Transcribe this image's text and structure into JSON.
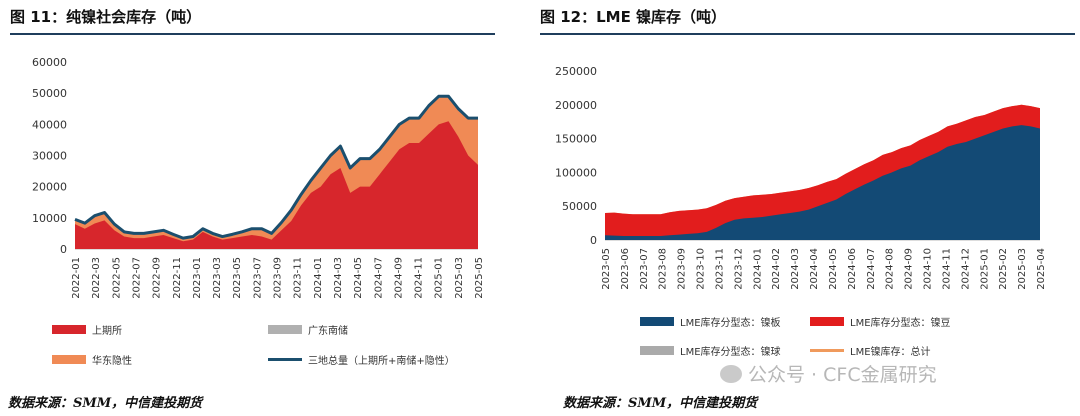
{
  "left": {
    "title": "图 11：纯镍社会库存（吨）",
    "source": "数据来源：SMM，中信建投期货",
    "chart_data": {
      "type": "area",
      "yticks": [
        0,
        10000,
        20000,
        30000,
        40000,
        50000,
        60000
      ],
      "ylim": [
        0,
        60000
      ],
      "xlabels": [
        "2022-01",
        "2022-03",
        "2022-05",
        "2022-07",
        "2022-09",
        "2022-11",
        "2023-01",
        "2023-03",
        "2023-05",
        "2023-07",
        "2023-09",
        "2023-11",
        "2024-01",
        "2024-03",
        "2024-05",
        "2024-07",
        "2024-09",
        "2024-11",
        "2025-01",
        "2025-03",
        "2025-05"
      ],
      "x": [
        0,
        1,
        2,
        3,
        4,
        5,
        6,
        7,
        8,
        9,
        10,
        11,
        12,
        13,
        14,
        15,
        16,
        17,
        18,
        19,
        20,
        21,
        22,
        23,
        24,
        25,
        26,
        27,
        28,
        29,
        30,
        31,
        32,
        33,
        34,
        35,
        36,
        37,
        38,
        39,
        40,
        41
      ],
      "series": [
        {
          "name": "上期所",
          "color": "#d7262c",
          "values": [
            8000,
            6500,
            8200,
            9200,
            6000,
            4000,
            3500,
            3500,
            4000,
            4500,
            3500,
            2500,
            3000,
            5500,
            4000,
            3000,
            3500,
            4000,
            4500,
            4000,
            3000,
            6000,
            9000,
            14000,
            18000,
            20000,
            24000,
            26000,
            18000,
            20000,
            20000,
            24000,
            28000,
            32000,
            34000,
            34000,
            37000,
            40000,
            41000,
            36000,
            30000,
            27000
          ]
        },
        {
          "name": "华东隐性",
          "color": "#f08a55",
          "values": [
            1500,
            1800,
            2500,
            2500,
            2000,
            1500,
            1500,
            1500,
            1500,
            1500,
            1200,
            1000,
            1000,
            1000,
            1000,
            1000,
            1200,
            1500,
            2000,
            2500,
            2000,
            2500,
            3500,
            3500,
            4000,
            6000,
            6000,
            7000,
            8000,
            9000,
            9000,
            8000,
            8000,
            8000,
            8000,
            8000,
            9000,
            9000,
            8000,
            9000,
            12000,
            15000
          ]
        },
        {
          "name": "广东南储",
          "color": "#b0b0b0",
          "values": [
            0,
            0,
            0,
            0,
            0,
            0,
            0,
            0,
            0,
            0,
            0,
            0,
            0,
            0,
            0,
            0,
            0,
            0,
            0,
            0,
            0,
            0,
            0,
            0,
            0,
            0,
            0,
            0,
            0,
            0,
            0,
            0,
            0,
            0,
            0,
            0,
            0,
            0,
            0,
            0,
            0,
            0
          ]
        },
        {
          "name": "三地总量（上期所+南储+隐性）",
          "color": "#1b4f6e",
          "values": [
            9500,
            8300,
            10700,
            11700,
            8000,
            5500,
            5000,
            5000,
            5500,
            6000,
            4700,
            3500,
            4000,
            6500,
            5000,
            4000,
            4700,
            5500,
            6500,
            6500,
            5000,
            8500,
            12500,
            17500,
            22000,
            26000,
            30000,
            33000,
            26000,
            29000,
            29000,
            32000,
            36000,
            40000,
            42000,
            42000,
            46000,
            49000,
            49000,
            45000,
            42000,
            42000
          ]
        }
      ]
    },
    "legend": [
      "上期所",
      "广东南储",
      "华东隐性",
      "三地总量（上期所+南储+隐性）"
    ]
  },
  "right": {
    "title": "图 12：LME 镍库存（吨）",
    "source": "数据来源：SMM，中信建投期货",
    "chart_data": {
      "type": "area",
      "yticks": [
        0,
        50000,
        100000,
        150000,
        200000,
        250000
      ],
      "ylim": [
        0,
        250000
      ],
      "xlabels": [
        "2023-05",
        "2023-06",
        "2023-07",
        "2023-08",
        "2023-09",
        "2023-10",
        "2023-11",
        "2023-12",
        "2024-01",
        "2024-02",
        "2024-03",
        "2024-04",
        "2024-05",
        "2024-06",
        "2024-07",
        "2024-08",
        "2024-09",
        "2024-10",
        "2024-11",
        "2024-12",
        "2025-01",
        "2025-02",
        "2025-03",
        "2025-04"
      ],
      "x": [
        0,
        1,
        2,
        3,
        4,
        5,
        6,
        7,
        8,
        9,
        10,
        11,
        12,
        13,
        14,
        15,
        16,
        17,
        18,
        19,
        20,
        21,
        22,
        23,
        24,
        25,
        26,
        27,
        28,
        29,
        30,
        31,
        32,
        33,
        34,
        35,
        36,
        37,
        38,
        39,
        40,
        41,
        42,
        43,
        44,
        45,
        46,
        47
      ],
      "series": [
        {
          "name": "LME库存分型态：镍板",
          "color": "#134a75",
          "values": [
            7000,
            6500,
            6000,
            6000,
            6000,
            6000,
            6000,
            7000,
            8000,
            9000,
            10000,
            12000,
            18000,
            25000,
            30000,
            32000,
            33000,
            34000,
            36000,
            38000,
            40000,
            42000,
            45000,
            50000,
            55000,
            60000,
            68000,
            75000,
            82000,
            88000,
            95000,
            100000,
            106000,
            110000,
            118000,
            124000,
            130000,
            138000,
            142000,
            145000,
            150000,
            155000,
            160000,
            165000,
            168000,
            170000,
            168000,
            165000
          ]
        },
        {
          "name": "LME库存分型态：镍豆",
          "color": "#e21d1d",
          "values": [
            33000,
            34000,
            33000,
            32000,
            32000,
            32000,
            32000,
            34000,
            35000,
            35000,
            35000,
            35000,
            34000,
            33000,
            32000,
            32000,
            33000,
            33000,
            32000,
            32000,
            32000,
            32000,
            32000,
            31000,
            31000,
            30000,
            30000,
            30000,
            30000,
            30000,
            31000,
            30000,
            30000,
            30000,
            30000,
            30000,
            30000,
            30000,
            30000,
            32000,
            32000,
            30000,
            30000,
            30000,
            30000,
            30000,
            30000,
            30000
          ]
        },
        {
          "name": "LME库存分型态：镍球",
          "color": "#aaaaaa",
          "values": [
            0,
            0,
            0,
            0,
            0,
            0,
            0,
            0,
            0,
            0,
            0,
            0,
            0,
            0,
            0,
            0,
            0,
            0,
            0,
            0,
            0,
            0,
            0,
            0,
            0,
            0,
            0,
            0,
            0,
            0,
            0,
            0,
            0,
            0,
            0,
            0,
            0,
            0,
            0,
            0,
            0,
            0,
            0,
            0,
            0,
            0,
            0,
            0
          ]
        },
        {
          "name": "LME镍库存：总计",
          "color": "#f09a5c",
          "values": [
            40000,
            40500,
            39000,
            38000,
            38000,
            38000,
            38000,
            41000,
            43000,
            44000,
            45000,
            47000,
            52000,
            58000,
            62000,
            64000,
            66000,
            67000,
            68000,
            70000,
            72000,
            74000,
            77000,
            81000,
            86000,
            90000,
            98000,
            105000,
            112000,
            118000,
            126000,
            130000,
            136000,
            140000,
            148000,
            154000,
            160000,
            168000,
            172000,
            177000,
            182000,
            185000,
            190000,
            195000,
            198000,
            200000,
            198000,
            195000
          ]
        }
      ]
    },
    "legend": [
      "LME库存分型态：镍板",
      "LME库存分型态：镍豆",
      "LME库存分型态：镍球",
      "LME镍库存：总计"
    ]
  },
  "watermark": "公众号 · CFC金属研究"
}
